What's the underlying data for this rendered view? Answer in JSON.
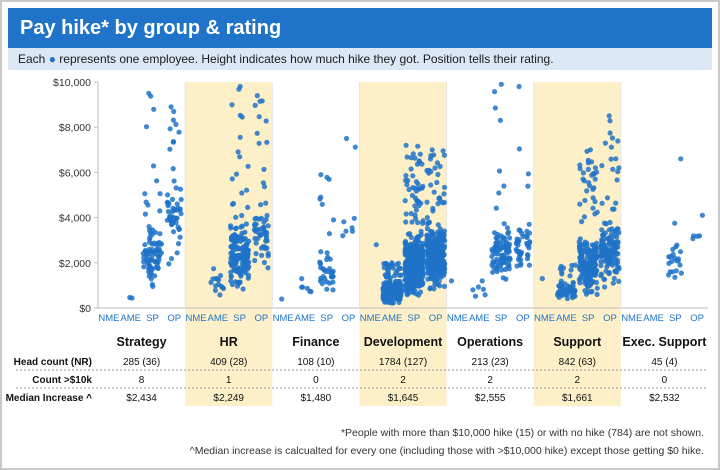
{
  "title": "Pay hike* by group & rating",
  "subtitle_prefix": "Each",
  "subtitle_suffix": "represents one employee. Height indicates how much hike they got. Position tells their rating.",
  "colors": {
    "accent": "#1f73c8",
    "dot": "#1f73c8",
    "band": "#fdf0c8",
    "subtitle_bg": "#dbe7f5"
  },
  "chart_data": {
    "type": "scatter",
    "ylim": [
      0,
      10000
    ],
    "yticks": [
      "$0",
      "$2,000",
      "$4,000",
      "$6,000",
      "$8,000",
      "$10,000"
    ],
    "ytick_values": [
      0,
      2000,
      4000,
      6000,
      8000,
      10000
    ],
    "rating_labels": [
      "NME",
      "AME",
      "SP",
      "OP"
    ],
    "groups": [
      {
        "name": "Strategy",
        "highlight": false,
        "head_count": "285 (36)",
        "count_over_10k": "8",
        "median_increase": "$2,434",
        "bands": [
          null,
          {
            "n": 2,
            "lo": 300,
            "hi": 600,
            "max": 600
          },
          {
            "n": 90,
            "lo": 600,
            "hi": 4000,
            "max": 9500
          },
          {
            "n": 55,
            "lo": 800,
            "hi": 6500,
            "max": 8900
          }
        ]
      },
      {
        "name": "HR",
        "highlight": true,
        "head_count": "409 (28)",
        "count_over_10k": "1",
        "median_increase": "$2,249",
        "bands": [
          null,
          {
            "n": 14,
            "lo": 300,
            "hi": 1900,
            "max": 1900
          },
          {
            "n": 170,
            "lo": 400,
            "hi": 4300,
            "max": 9800
          },
          {
            "n": 60,
            "lo": 1500,
            "hi": 5000,
            "max": 9400
          }
        ]
      },
      {
        "name": "Finance",
        "highlight": false,
        "head_count": "108 (10)",
        "count_over_10k": "0",
        "median_increase": "$1,480",
        "bands": [
          {
            "n": 1,
            "lo": 400,
            "hi": 400,
            "max": 400
          },
          {
            "n": 6,
            "lo": 300,
            "hi": 1300,
            "max": 1300
          },
          {
            "n": 40,
            "lo": 400,
            "hi": 3000,
            "max": 5900
          },
          {
            "n": 8,
            "lo": 1800,
            "hi": 5300,
            "max": 7500
          }
        ]
      },
      {
        "name": "Development",
        "highlight": true,
        "head_count": "1784 (127)",
        "count_over_10k": "2",
        "median_increase": "$1,645",
        "bands": [
          {
            "n": 1,
            "lo": 2800,
            "hi": 2800,
            "max": 2800
          },
          {
            "n": 240,
            "lo": 100,
            "hi": 1300,
            "max": 2000
          },
          {
            "n": 420,
            "lo": 100,
            "hi": 3700,
            "max": 7200
          },
          {
            "n": 300,
            "lo": 500,
            "hi": 4200,
            "max": 7000
          }
        ]
      },
      {
        "name": "Operations",
        "highlight": false,
        "head_count": "213 (23)",
        "count_over_10k": "2",
        "median_increase": "$2,555",
        "bands": [
          {
            "n": 1,
            "lo": 1200,
            "hi": 1200,
            "max": 1200
          },
          {
            "n": 6,
            "lo": 200,
            "hi": 1200,
            "max": 1200
          },
          {
            "n": 90,
            "lo": 900,
            "hi": 4000,
            "max": 9900
          },
          {
            "n": 45,
            "lo": 1300,
            "hi": 4200,
            "max": 9800
          }
        ]
      },
      {
        "name": "Support",
        "highlight": true,
        "head_count": "842 (63)",
        "count_over_10k": "2",
        "median_increase": "$1,661",
        "bands": [
          {
            "n": 1,
            "lo": 1300,
            "hi": 1300,
            "max": 1300
          },
          {
            "n": 70,
            "lo": 200,
            "hi": 1400,
            "max": 1900
          },
          {
            "n": 200,
            "lo": 300,
            "hi": 3500,
            "max": 7000
          },
          {
            "n": 140,
            "lo": 600,
            "hi": 4200,
            "max": 8500
          }
        ]
      },
      {
        "name": "Exec. Support",
        "highlight": false,
        "head_count": "45 (4)",
        "count_over_10k": "0",
        "median_increase": "$2,532",
        "bands": [
          null,
          null,
          {
            "n": 22,
            "lo": 800,
            "hi": 3300,
            "max": 6600
          },
          {
            "n": 5,
            "lo": 1900,
            "hi": 4000,
            "max": 4100
          }
        ]
      }
    ]
  },
  "table": {
    "head_count_label": "Head count (NR)",
    "count_label": "Count >$10k",
    "median_label": "Median Increase ^"
  },
  "footnotes": [
    "*People with more than $10,000 hike (15) or with no hike (784) are not shown.",
    "^Median increase is calcualted for every one (including those with >$10,000 hike) except those getting $0 hike."
  ]
}
